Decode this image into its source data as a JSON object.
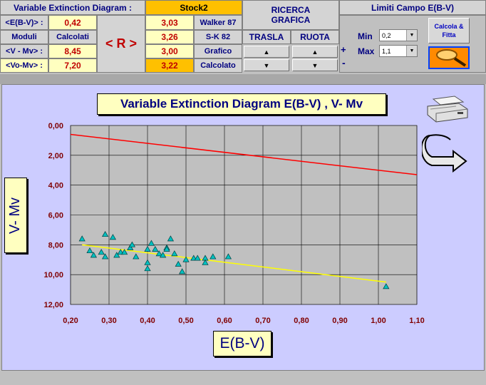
{
  "panel": {
    "title": "Variable Extinction Diagram :",
    "stock": "Stock2",
    "rows": [
      {
        "label": "<E(B-V)> :",
        "value": "0,42",
        "r_value": "3,03",
        "r_label": "Walker 87"
      },
      {
        "label": "Moduli",
        "value": "Calcolati",
        "r_value": "3,26",
        "r_label": "S-K 82"
      },
      {
        "label": "<V - Mv> :",
        "value": "8,45",
        "r_value": "3,00",
        "r_label": "Grafico"
      },
      {
        "label": "<Vo-Mv> :",
        "value": "7,20",
        "r_value": "3,22",
        "r_label": "Calcolato"
      }
    ],
    "r_label": "< R >"
  },
  "ricerca": {
    "line1": "RICERCA",
    "line2": "GRAFICA",
    "trasla": "TRASLA",
    "ruota": "RUOTA",
    "up": "▲",
    "down": "▼",
    "plus": "+",
    "minus": "-"
  },
  "limiti": {
    "title": "Limiti Campo E(B-V)",
    "min_label": "Min",
    "max_label": "Max",
    "min_value": "0,2",
    "max_value": "1,1",
    "calc_button": "Calcola & Fitta"
  },
  "chart_data": {
    "type": "scatter",
    "title": "Variable Extinction Diagram E(B-V) , V- Mv",
    "xlabel": "E(B-V)",
    "ylabel": "V- Mv",
    "xlim": [
      0.2,
      1.1
    ],
    "ylim": [
      0,
      12
    ],
    "y_inverted": true,
    "xticks": [
      "0,20",
      "0,30",
      "0,40",
      "0,50",
      "0,60",
      "0,70",
      "0,80",
      "0,90",
      "1,00",
      "1,10"
    ],
    "yticks": [
      "0,00",
      "2,00",
      "4,00",
      "6,00",
      "8,00",
      "10,00",
      "12,00"
    ],
    "grid": true,
    "points": [
      [
        0.23,
        7.6
      ],
      [
        0.25,
        8.4
      ],
      [
        0.26,
        8.7
      ],
      [
        0.28,
        8.5
      ],
      [
        0.29,
        7.3
      ],
      [
        0.29,
        8.8
      ],
      [
        0.31,
        7.5
      ],
      [
        0.32,
        8.7
      ],
      [
        0.33,
        8.5
      ],
      [
        0.34,
        8.5
      ],
      [
        0.355,
        8.2
      ],
      [
        0.36,
        8.0
      ],
      [
        0.37,
        8.8
      ],
      [
        0.4,
        8.3
      ],
      [
        0.4,
        9.2
      ],
      [
        0.4,
        9.6
      ],
      [
        0.41,
        7.9
      ],
      [
        0.42,
        8.3
      ],
      [
        0.43,
        8.6
      ],
      [
        0.44,
        8.7
      ],
      [
        0.45,
        8.2
      ],
      [
        0.45,
        8.3
      ],
      [
        0.46,
        7.6
      ],
      [
        0.47,
        8.6
      ],
      [
        0.48,
        9.3
      ],
      [
        0.49,
        9.8
      ],
      [
        0.5,
        9.0
      ],
      [
        0.52,
        8.9
      ],
      [
        0.53,
        8.9
      ],
      [
        0.55,
        8.9
      ],
      [
        0.55,
        9.2
      ],
      [
        0.57,
        8.8
      ],
      [
        0.61,
        8.8
      ],
      [
        1.02,
        10.8
      ]
    ],
    "fit_line": {
      "x": [
        0.23,
        1.02
      ],
      "y": [
        8.0,
        10.5
      ],
      "color": "#ffff00"
    },
    "ref_line": {
      "x": [
        0.2,
        1.1
      ],
      "y": [
        0.6,
        3.3
      ],
      "color": "#ff0000"
    },
    "point_color": "#00c0c0",
    "plot_bg": "#c0c0c0",
    "area_bg": "#ccccff"
  }
}
